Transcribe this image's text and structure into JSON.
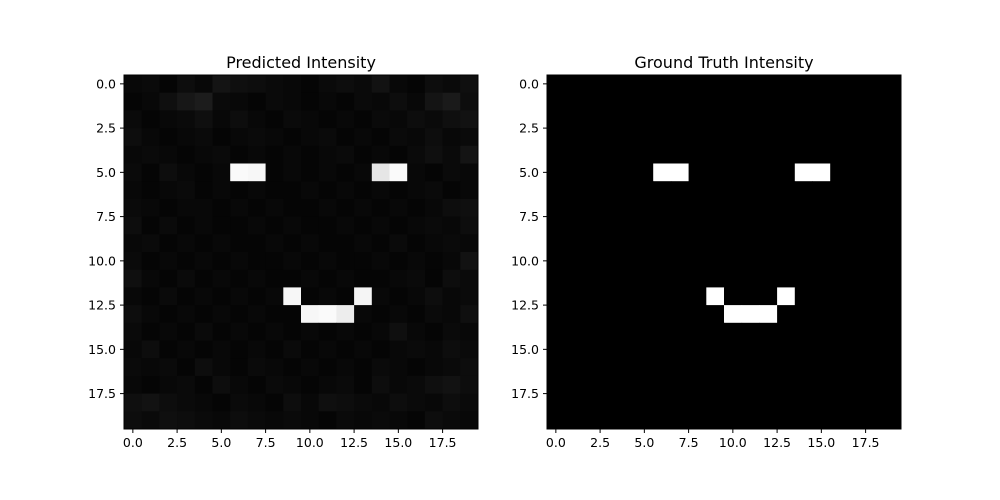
{
  "chart_data": [
    {
      "type": "heatmap",
      "title": "Predicted Intensity",
      "colormap": "gray",
      "vmin": 0.0,
      "vmax": 1.0,
      "grid": false,
      "xticks": [
        "0.0",
        "2.5",
        "5.0",
        "7.5",
        "10.0",
        "12.5",
        "15.0",
        "17.5"
      ],
      "yticks": [
        "0.0",
        "2.5",
        "5.0",
        "7.5",
        "10.0",
        "12.5",
        "15.0",
        "17.5"
      ],
      "xlim": [
        -0.5,
        19.5
      ],
      "ylim": [
        19.5,
        -0.5
      ],
      "matrix": [
        [
          0.03,
          0.04,
          0.02,
          0.05,
          0.03,
          0.08,
          0.06,
          0.05,
          0.04,
          0.03,
          0.02,
          0.04,
          0.05,
          0.04,
          0.07,
          0.03,
          0.02,
          0.05,
          0.04,
          0.06
        ],
        [
          0.02,
          0.03,
          0.06,
          0.09,
          0.11,
          0.04,
          0.03,
          0.02,
          0.04,
          0.03,
          0.02,
          0.03,
          0.02,
          0.04,
          0.03,
          0.05,
          0.03,
          0.08,
          0.1,
          0.05
        ],
        [
          0.04,
          0.02,
          0.03,
          0.04,
          0.06,
          0.03,
          0.05,
          0.03,
          0.02,
          0.04,
          0.03,
          0.02,
          0.03,
          0.02,
          0.04,
          0.03,
          0.05,
          0.04,
          0.06,
          0.07
        ],
        [
          0.05,
          0.03,
          0.02,
          0.03,
          0.04,
          0.02,
          0.03,
          0.04,
          0.03,
          0.02,
          0.03,
          0.04,
          0.02,
          0.03,
          0.02,
          0.04,
          0.03,
          0.05,
          0.03,
          0.04
        ],
        [
          0.03,
          0.04,
          0.03,
          0.02,
          0.03,
          0.04,
          0.02,
          0.03,
          0.02,
          0.03,
          0.02,
          0.03,
          0.04,
          0.02,
          0.03,
          0.02,
          0.04,
          0.06,
          0.04,
          0.08
        ],
        [
          0.04,
          0.02,
          0.05,
          0.03,
          0.02,
          0.03,
          0.98,
          0.97,
          0.02,
          0.03,
          0.02,
          0.03,
          0.02,
          0.03,
          0.9,
          0.98,
          0.03,
          0.02,
          0.04,
          0.03
        ],
        [
          0.03,
          0.02,
          0.03,
          0.04,
          0.02,
          0.03,
          0.02,
          0.03,
          0.02,
          0.02,
          0.03,
          0.02,
          0.03,
          0.02,
          0.03,
          0.02,
          0.03,
          0.04,
          0.02,
          0.03
        ],
        [
          0.04,
          0.03,
          0.02,
          0.03,
          0.03,
          0.02,
          0.03,
          0.02,
          0.03,
          0.02,
          0.02,
          0.03,
          0.02,
          0.03,
          0.02,
          0.03,
          0.02,
          0.03,
          0.05,
          0.06
        ],
        [
          0.05,
          0.02,
          0.04,
          0.02,
          0.03,
          0.02,
          0.02,
          0.03,
          0.02,
          0.03,
          0.02,
          0.02,
          0.03,
          0.02,
          0.03,
          0.02,
          0.03,
          0.04,
          0.03,
          0.05
        ],
        [
          0.03,
          0.04,
          0.02,
          0.03,
          0.02,
          0.03,
          0.02,
          0.02,
          0.03,
          0.02,
          0.03,
          0.02,
          0.02,
          0.03,
          0.02,
          0.04,
          0.02,
          0.03,
          0.04,
          0.03
        ],
        [
          0.04,
          0.02,
          0.03,
          0.02,
          0.03,
          0.02,
          0.03,
          0.02,
          0.02,
          0.03,
          0.02,
          0.03,
          0.02,
          0.02,
          0.03,
          0.02,
          0.03,
          0.02,
          0.03,
          0.07
        ],
        [
          0.06,
          0.03,
          0.02,
          0.04,
          0.02,
          0.03,
          0.02,
          0.03,
          0.02,
          0.02,
          0.03,
          0.02,
          0.03,
          0.02,
          0.02,
          0.03,
          0.04,
          0.02,
          0.05,
          0.04
        ],
        [
          0.03,
          0.02,
          0.04,
          0.02,
          0.03,
          0.02,
          0.03,
          0.02,
          0.03,
          0.97,
          0.02,
          0.03,
          0.02,
          0.96,
          0.03,
          0.02,
          0.03,
          0.05,
          0.03,
          0.04
        ],
        [
          0.05,
          0.03,
          0.02,
          0.03,
          0.02,
          0.03,
          0.02,
          0.03,
          0.02,
          0.02,
          0.97,
          0.98,
          0.93,
          0.03,
          0.02,
          0.03,
          0.02,
          0.04,
          0.03,
          0.06
        ],
        [
          0.04,
          0.02,
          0.03,
          0.02,
          0.04,
          0.02,
          0.03,
          0.02,
          0.03,
          0.02,
          0.03,
          0.02,
          0.03,
          0.02,
          0.03,
          0.06,
          0.03,
          0.02,
          0.04,
          0.03
        ],
        [
          0.03,
          0.05,
          0.02,
          0.03,
          0.02,
          0.03,
          0.02,
          0.03,
          0.02,
          0.04,
          0.02,
          0.03,
          0.02,
          0.03,
          0.02,
          0.03,
          0.04,
          0.03,
          0.05,
          0.04
        ],
        [
          0.04,
          0.03,
          0.04,
          0.02,
          0.05,
          0.03,
          0.02,
          0.04,
          0.03,
          0.02,
          0.03,
          0.02,
          0.03,
          0.02,
          0.04,
          0.03,
          0.02,
          0.03,
          0.04,
          0.05
        ],
        [
          0.03,
          0.02,
          0.03,
          0.04,
          0.02,
          0.05,
          0.03,
          0.02,
          0.04,
          0.03,
          0.02,
          0.03,
          0.04,
          0.02,
          0.05,
          0.03,
          0.04,
          0.06,
          0.07,
          0.05
        ],
        [
          0.06,
          0.07,
          0.05,
          0.04,
          0.03,
          0.02,
          0.04,
          0.03,
          0.02,
          0.05,
          0.03,
          0.06,
          0.05,
          0.04,
          0.03,
          0.05,
          0.04,
          0.03,
          0.05,
          0.04
        ],
        [
          0.05,
          0.04,
          0.06,
          0.05,
          0.04,
          0.03,
          0.05,
          0.04,
          0.03,
          0.04,
          0.03,
          0.02,
          0.04,
          0.03,
          0.04,
          0.03,
          0.02,
          0.05,
          0.04,
          0.03
        ]
      ]
    },
    {
      "type": "heatmap",
      "title": "Ground Truth Intensity",
      "colormap": "gray",
      "vmin": 0.0,
      "vmax": 1.0,
      "grid": false,
      "xticks": [
        "0.0",
        "2.5",
        "5.0",
        "7.5",
        "10.0",
        "12.5",
        "15.0",
        "17.5"
      ],
      "yticks": [
        "0.0",
        "2.5",
        "5.0",
        "7.5",
        "10.0",
        "12.5",
        "15.0",
        "17.5"
      ],
      "xlim": [
        -0.5,
        19.5
      ],
      "ylim": [
        19.5,
        -0.5
      ],
      "matrix": [
        [
          0,
          0,
          0,
          0,
          0,
          0,
          0,
          0,
          0,
          0,
          0,
          0,
          0,
          0,
          0,
          0,
          0,
          0,
          0,
          0
        ],
        [
          0,
          0,
          0,
          0,
          0,
          0,
          0,
          0,
          0,
          0,
          0,
          0,
          0,
          0,
          0,
          0,
          0,
          0,
          0,
          0
        ],
        [
          0,
          0,
          0,
          0,
          0,
          0,
          0,
          0,
          0,
          0,
          0,
          0,
          0,
          0,
          0,
          0,
          0,
          0,
          0,
          0
        ],
        [
          0,
          0,
          0,
          0,
          0,
          0,
          0,
          0,
          0,
          0,
          0,
          0,
          0,
          0,
          0,
          0,
          0,
          0,
          0,
          0
        ],
        [
          0,
          0,
          0,
          0,
          0,
          0,
          0,
          0,
          0,
          0,
          0,
          0,
          0,
          0,
          0,
          0,
          0,
          0,
          0,
          0
        ],
        [
          0,
          0,
          0,
          0,
          0,
          0,
          1,
          1,
          0,
          0,
          0,
          0,
          0,
          0,
          1,
          1,
          0,
          0,
          0,
          0
        ],
        [
          0,
          0,
          0,
          0,
          0,
          0,
          0,
          0,
          0,
          0,
          0,
          0,
          0,
          0,
          0,
          0,
          0,
          0,
          0,
          0
        ],
        [
          0,
          0,
          0,
          0,
          0,
          0,
          0,
          0,
          0,
          0,
          0,
          0,
          0,
          0,
          0,
          0,
          0,
          0,
          0,
          0
        ],
        [
          0,
          0,
          0,
          0,
          0,
          0,
          0,
          0,
          0,
          0,
          0,
          0,
          0,
          0,
          0,
          0,
          0,
          0,
          0,
          0
        ],
        [
          0,
          0,
          0,
          0,
          0,
          0,
          0,
          0,
          0,
          0,
          0,
          0,
          0,
          0,
          0,
          0,
          0,
          0,
          0,
          0
        ],
        [
          0,
          0,
          0,
          0,
          0,
          0,
          0,
          0,
          0,
          0,
          0,
          0,
          0,
          0,
          0,
          0,
          0,
          0,
          0,
          0
        ],
        [
          0,
          0,
          0,
          0,
          0,
          0,
          0,
          0,
          0,
          0,
          0,
          0,
          0,
          0,
          0,
          0,
          0,
          0,
          0,
          0
        ],
        [
          0,
          0,
          0,
          0,
          0,
          0,
          0,
          0,
          0,
          1,
          0,
          0,
          0,
          1,
          0,
          0,
          0,
          0,
          0,
          0
        ],
        [
          0,
          0,
          0,
          0,
          0,
          0,
          0,
          0,
          0,
          0,
          1,
          1,
          1,
          0,
          0,
          0,
          0,
          0,
          0,
          0
        ],
        [
          0,
          0,
          0,
          0,
          0,
          0,
          0,
          0,
          0,
          0,
          0,
          0,
          0,
          0,
          0,
          0,
          0,
          0,
          0,
          0
        ],
        [
          0,
          0,
          0,
          0,
          0,
          0,
          0,
          0,
          0,
          0,
          0,
          0,
          0,
          0,
          0,
          0,
          0,
          0,
          0,
          0
        ],
        [
          0,
          0,
          0,
          0,
          0,
          0,
          0,
          0,
          0,
          0,
          0,
          0,
          0,
          0,
          0,
          0,
          0,
          0,
          0,
          0
        ],
        [
          0,
          0,
          0,
          0,
          0,
          0,
          0,
          0,
          0,
          0,
          0,
          0,
          0,
          0,
          0,
          0,
          0,
          0,
          0,
          0
        ],
        [
          0,
          0,
          0,
          0,
          0,
          0,
          0,
          0,
          0,
          0,
          0,
          0,
          0,
          0,
          0,
          0,
          0,
          0,
          0,
          0
        ],
        [
          0,
          0,
          0,
          0,
          0,
          0,
          0,
          0,
          0,
          0,
          0,
          0,
          0,
          0,
          0,
          0,
          0,
          0,
          0,
          0
        ]
      ]
    }
  ]
}
